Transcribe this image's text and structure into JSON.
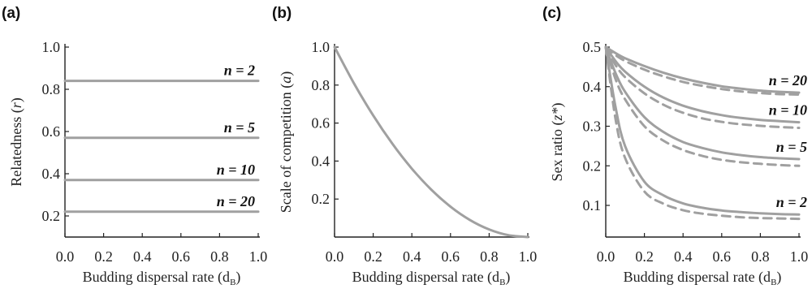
{
  "figure": {
    "panel_a_label": "(a)",
    "panel_b_label": "(b)",
    "panel_c_label": "(c)"
  },
  "chart_data": [
    {
      "panel": "(a)",
      "type": "line",
      "xlabel": "Budding dispersal rate (d",
      "xlabel_sub": "B",
      "xlabel_end": ")",
      "ylabel": "Relatedness (",
      "ylabel_var": "r",
      "ylabel_end": ")",
      "xlim": [
        0,
        1
      ],
      "ylim": [
        0.1,
        1.0
      ],
      "xticks": [
        0.0,
        0.2,
        0.4,
        0.6,
        0.8,
        1.0
      ],
      "xtick_labels": [
        "0.0",
        "0.2",
        "0.4",
        "0.6",
        "0.8",
        "1.0"
      ],
      "yticks": [
        0.2,
        0.4,
        0.6,
        0.8,
        1.0
      ],
      "ytick_labels": [
        "0.2",
        "0.4",
        "0.6",
        "0.8",
        "1.0"
      ],
      "line_color": "#a0a0a0",
      "series": [
        {
          "label": "n = 2",
          "x": [
            0,
            1
          ],
          "y": [
            0.84,
            0.84
          ]
        },
        {
          "label": "n = 5",
          "x": [
            0,
            1
          ],
          "y": [
            0.57,
            0.57
          ]
        },
        {
          "label": "n = 10",
          "x": [
            0,
            1
          ],
          "y": [
            0.37,
            0.37
          ]
        },
        {
          "label": "n = 20",
          "x": [
            0,
            1
          ],
          "y": [
            0.22,
            0.22
          ]
        }
      ]
    },
    {
      "panel": "(b)",
      "type": "line",
      "xlabel": "Budding dispersal rate (d",
      "xlabel_sub": "B",
      "xlabel_end": ")",
      "ylabel": "Scale of competition (",
      "ylabel_var": "a",
      "ylabel_end": ")",
      "xlim": [
        0,
        1
      ],
      "ylim": [
        0,
        1.0
      ],
      "xticks": [
        0.0,
        0.2,
        0.4,
        0.6,
        0.8,
        1.0
      ],
      "xtick_labels": [
        "0.0",
        "0.2",
        "0.4",
        "0.6",
        "0.8",
        "1.0"
      ],
      "yticks": [
        0.2,
        0.4,
        0.6,
        0.8,
        1.0
      ],
      "ytick_labels": [
        "0.2",
        "0.4",
        "0.6",
        "0.8",
        "1.0"
      ],
      "line_color": "#a0a0a0",
      "series": [
        {
          "x": [
            0,
            0.1,
            0.2,
            0.3,
            0.4,
            0.5,
            0.6,
            0.7,
            0.8,
            0.9,
            1.0
          ],
          "y": [
            1.0,
            0.81,
            0.64,
            0.49,
            0.36,
            0.25,
            0.16,
            0.09,
            0.04,
            0.01,
            0.0
          ]
        }
      ]
    },
    {
      "panel": "(c)",
      "type": "line",
      "xlabel": "Budding dispersal rate (d",
      "xlabel_sub": "B",
      "xlabel_end": ")",
      "ylabel": "Sex ratio (",
      "ylabel_var": "z*",
      "ylabel_end": ")",
      "xlim": [
        0,
        1
      ],
      "ylim": [
        0.02,
        0.5
      ],
      "xticks": [
        0.0,
        0.2,
        0.4,
        0.6,
        0.8,
        1.0
      ],
      "xtick_labels": [
        "0.0",
        "0.2",
        "0.4",
        "0.6",
        "0.8",
        "1.0"
      ],
      "yticks": [
        0.1,
        0.2,
        0.3,
        0.4,
        0.5
      ],
      "ytick_labels": [
        "0.1",
        "0.2",
        "0.3",
        "0.4",
        "0.5"
      ],
      "line_color": "#a0a0a0",
      "series": [
        {
          "label": "n = 20",
          "style": "solid",
          "x": [
            0,
            0.05,
            0.1,
            0.2,
            0.3,
            0.4,
            0.5,
            0.6,
            0.7,
            0.8,
            0.9,
            1.0
          ],
          "y": [
            0.5,
            0.485,
            0.472,
            0.452,
            0.435,
            0.421,
            0.41,
            0.401,
            0.395,
            0.39,
            0.387,
            0.385
          ]
        },
        {
          "label": "n = 20",
          "style": "dashed",
          "x": [
            0,
            0.05,
            0.1,
            0.2,
            0.3,
            0.4,
            0.5,
            0.6,
            0.7,
            0.8,
            0.9,
            1.0
          ],
          "y": [
            0.5,
            0.48,
            0.465,
            0.443,
            0.426,
            0.412,
            0.402,
            0.394,
            0.388,
            0.384,
            0.381,
            0.38
          ]
        },
        {
          "label": "n = 10",
          "style": "solid",
          "x": [
            0,
            0.05,
            0.1,
            0.2,
            0.3,
            0.4,
            0.5,
            0.6,
            0.7,
            0.8,
            0.9,
            1.0
          ],
          "y": [
            0.5,
            0.465,
            0.438,
            0.4,
            0.372,
            0.352,
            0.338,
            0.328,
            0.321,
            0.316,
            0.313,
            0.31
          ]
        },
        {
          "label": "n = 10",
          "style": "dashed",
          "x": [
            0,
            0.05,
            0.1,
            0.2,
            0.3,
            0.4,
            0.5,
            0.6,
            0.7,
            0.8,
            0.9,
            1.0
          ],
          "y": [
            0.5,
            0.455,
            0.424,
            0.383,
            0.354,
            0.334,
            0.32,
            0.311,
            0.305,
            0.301,
            0.298,
            0.296
          ]
        },
        {
          "label": "n = 5",
          "style": "solid",
          "x": [
            0,
            0.05,
            0.1,
            0.2,
            0.3,
            0.4,
            0.5,
            0.6,
            0.7,
            0.8,
            0.9,
            1.0
          ],
          "y": [
            0.5,
            0.435,
            0.387,
            0.323,
            0.285,
            0.26,
            0.245,
            0.234,
            0.227,
            0.222,
            0.219,
            0.217
          ]
        },
        {
          "label": "n = 5",
          "style": "dashed",
          "x": [
            0,
            0.05,
            0.1,
            0.2,
            0.3,
            0.4,
            0.5,
            0.6,
            0.7,
            0.8,
            0.9,
            1.0
          ],
          "y": [
            0.5,
            0.42,
            0.368,
            0.3,
            0.263,
            0.24,
            0.225,
            0.215,
            0.209,
            0.205,
            0.202,
            0.2
          ]
        },
        {
          "label": "n = 2",
          "style": "solid",
          "x": [
            0,
            0.05,
            0.1,
            0.2,
            0.3,
            0.4,
            0.5,
            0.6,
            0.7,
            0.8,
            0.9,
            1.0
          ],
          "y": [
            0.5,
            0.35,
            0.25,
            0.16,
            0.125,
            0.105,
            0.094,
            0.087,
            0.083,
            0.08,
            0.078,
            0.077
          ]
        },
        {
          "label": "n = 2",
          "style": "dashed",
          "x": [
            0,
            0.05,
            0.1,
            0.2,
            0.3,
            0.4,
            0.5,
            0.6,
            0.7,
            0.8,
            0.9,
            1.0
          ],
          "y": [
            0.5,
            0.32,
            0.22,
            0.135,
            0.104,
            0.088,
            0.079,
            0.074,
            0.07,
            0.068,
            0.067,
            0.066
          ]
        }
      ],
      "annotations": [
        {
          "text": "n = 20",
          "anchor_series": 0
        },
        {
          "text": "n = 10",
          "anchor_series": 2
        },
        {
          "text": "n = 5",
          "anchor_series": 4
        },
        {
          "text": "n = 2",
          "anchor_series": 6
        }
      ]
    }
  ]
}
